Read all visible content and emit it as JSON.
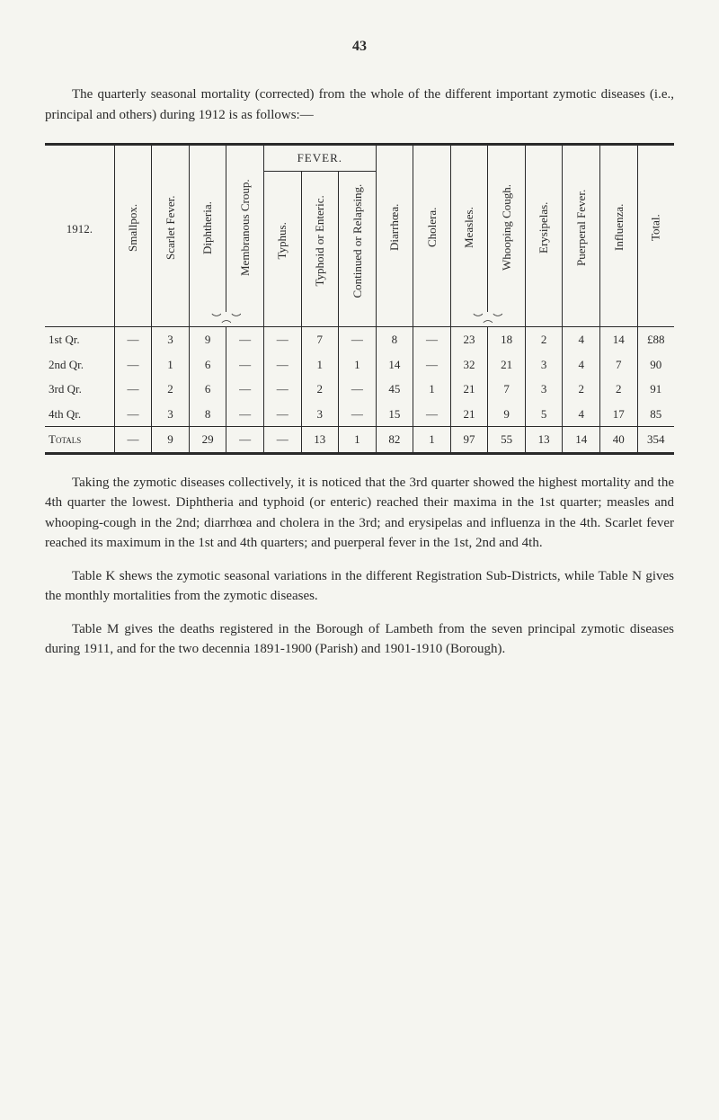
{
  "page_number": "43",
  "intro": "The quarterly seasonal mortality (corrected) from the whole of the different important zymotic diseases (i.e., principal and others) during 1912 is as follows:—",
  "table": {
    "year_label": "1912.",
    "fever_group": "FEVER.",
    "columns": [
      "Smallpox.",
      "Scarlet Fever.",
      "Diphtheria.",
      "Membranous Croup.",
      "Typhus.",
      "Typhoid or Enteric.",
      "Continued or Relapsing.",
      "Diarrhœa.",
      "Cholera.",
      "Measles.",
      "Whooping Cough.",
      "Erysipelas.",
      "Puerperal Fever.",
      "Influenza.",
      "Total."
    ],
    "rows": [
      {
        "label": "1st Qr.",
        "cells": [
          "—",
          "3",
          "9",
          "—",
          "—",
          "7",
          "—",
          "8",
          "—",
          "23",
          "18",
          "2",
          "4",
          "14",
          "£88"
        ]
      },
      {
        "label": "2nd Qr.",
        "cells": [
          "—",
          "1",
          "6",
          "—",
          "—",
          "1",
          "1",
          "14",
          "—",
          "32",
          "21",
          "3",
          "4",
          "7",
          "90"
        ]
      },
      {
        "label": "3rd Qr.",
        "cells": [
          "—",
          "2",
          "6",
          "—",
          "—",
          "2",
          "—",
          "45",
          "1",
          "21",
          "7",
          "3",
          "2",
          "2",
          "91"
        ]
      },
      {
        "label": "4th Qr.",
        "cells": [
          "—",
          "3",
          "8",
          "—",
          "—",
          "3",
          "—",
          "15",
          "—",
          "21",
          "9",
          "5",
          "4",
          "17",
          "85"
        ]
      }
    ],
    "totals": {
      "label": "Totals",
      "cells": [
        "—",
        "9",
        "29",
        "—",
        "—",
        "13",
        "1",
        "82",
        "1",
        "97",
        "55",
        "13",
        "14",
        "40",
        "354"
      ]
    }
  },
  "para1": "Taking the zymotic diseases collectively, it is noticed that the 3rd quarter showed the highest mortality and the 4th quarter the lowest. Diphtheria and typhoid (or enteric) reached their maxima in the 1st quarter; measles and whooping-cough in the 2nd; diarrhœa and cholera in the 3rd; and erysipelas and influenza in the 4th. Scarlet fever reached its maximum in the 1st and 4th quarters; and puerperal fever in the 1st, 2nd and 4th.",
  "para2": "Table K shews the zymotic seasonal variations in the different Registration Sub-Districts, while Table N gives the monthly mortalities from the zymotic diseases.",
  "para3": "Table M gives the deaths registered in the Borough of Lambeth from the seven principal zymotic diseases during 1911, and for the two decennia 1891-1900 (Parish) and 1901-1910 (Borough)."
}
